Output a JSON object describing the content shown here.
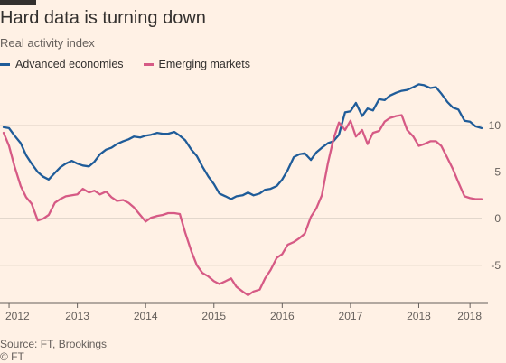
{
  "title": "Hard data is turning down",
  "subtitle": "Real activity index",
  "source": "Source: FT, Brookings",
  "copyright": "© FT",
  "chart_data": {
    "type": "line",
    "title": "Hard data is turning down",
    "ylabel": "Real activity index",
    "xlabel": "",
    "ylim": [
      -8.5,
      15.5
    ],
    "yticks": [
      -5,
      0,
      5,
      10
    ],
    "xticks": [
      {
        "label": "2012",
        "x": 2012.0
      },
      {
        "label": "2013",
        "x": 2013.0
      },
      {
        "label": "2014",
        "x": 2014.0
      },
      {
        "label": "2015",
        "x": 2015.0
      },
      {
        "label": "2016",
        "x": 2016.0
      },
      {
        "label": "2017",
        "x": 2017.0
      },
      {
        "label": "2018",
        "x": 2018.0
      },
      {
        "label": "2018",
        "x": 2018.75
      }
    ],
    "xlim": [
      2011.92,
      2018.92
    ],
    "grid": "horizontal",
    "legend_position": "top-left",
    "series": [
      {
        "name": "Advanced economies",
        "color": "#1f5c99",
        "x": [
          2011.92,
          2012.0,
          2012.08,
          2012.17,
          2012.25,
          2012.33,
          2012.42,
          2012.5,
          2012.58,
          2012.67,
          2012.75,
          2012.83,
          2012.92,
          2013.0,
          2013.08,
          2013.17,
          2013.25,
          2013.33,
          2013.42,
          2013.5,
          2013.58,
          2013.67,
          2013.75,
          2013.83,
          2013.92,
          2014.0,
          2014.08,
          2014.17,
          2014.25,
          2014.33,
          2014.42,
          2014.5,
          2014.58,
          2014.67,
          2014.75,
          2014.83,
          2014.92,
          2015.0,
          2015.08,
          2015.17,
          2015.25,
          2015.33,
          2015.42,
          2015.5,
          2015.58,
          2015.67,
          2015.75,
          2015.83,
          2015.92,
          2016.0,
          2016.08,
          2016.17,
          2016.25,
          2016.33,
          2016.42,
          2016.5,
          2016.58,
          2016.67,
          2016.75,
          2016.83,
          2016.92,
          2017.0,
          2017.08,
          2017.17,
          2017.25,
          2017.33,
          2017.42,
          2017.5,
          2017.58,
          2017.67,
          2017.75,
          2017.83,
          2017.92,
          2018.0,
          2018.08,
          2018.17,
          2018.25,
          2018.33,
          2018.42,
          2018.5,
          2018.58,
          2018.67,
          2018.75,
          2018.83,
          2018.92
        ],
        "y": [
          9.8,
          9.7,
          8.9,
          8.1,
          6.8,
          5.9,
          5.0,
          4.5,
          4.2,
          4.9,
          5.5,
          5.9,
          6.2,
          5.9,
          5.7,
          5.6,
          6.1,
          6.9,
          7.4,
          7.6,
          8.0,
          8.3,
          8.5,
          8.8,
          8.7,
          8.9,
          9.0,
          9.2,
          9.1,
          9.1,
          9.3,
          8.9,
          8.4,
          7.4,
          6.7,
          5.6,
          4.5,
          3.7,
          2.7,
          2.4,
          2.1,
          2.4,
          2.5,
          2.8,
          2.5,
          2.7,
          3.1,
          3.2,
          3.5,
          4.2,
          5.2,
          6.6,
          6.9,
          7.0,
          6.3,
          7.1,
          7.6,
          8.1,
          8.3,
          9.0,
          11.4,
          11.5,
          12.4,
          11.0,
          11.8,
          11.6,
          12.8,
          12.7,
          13.2,
          13.5,
          13.7,
          13.8,
          14.1,
          14.4,
          14.3,
          14.0,
          14.1,
          13.4,
          12.5,
          11.9,
          11.7,
          10.5,
          10.4,
          9.9,
          9.7
        ]
      },
      {
        "name": "Emerging markets",
        "color": "#d65a85",
        "x": [
          2011.92,
          2012.0,
          2012.08,
          2012.17,
          2012.25,
          2012.33,
          2012.42,
          2012.5,
          2012.58,
          2012.67,
          2012.75,
          2012.83,
          2012.92,
          2013.0,
          2013.08,
          2013.17,
          2013.25,
          2013.33,
          2013.42,
          2013.5,
          2013.58,
          2013.67,
          2013.75,
          2013.83,
          2013.92,
          2014.0,
          2014.08,
          2014.17,
          2014.25,
          2014.33,
          2014.42,
          2014.5,
          2014.58,
          2014.67,
          2014.75,
          2014.83,
          2014.92,
          2015.0,
          2015.08,
          2015.17,
          2015.25,
          2015.33,
          2015.42,
          2015.5,
          2015.58,
          2015.67,
          2015.75,
          2015.83,
          2015.92,
          2016.0,
          2016.08,
          2016.17,
          2016.25,
          2016.33,
          2016.42,
          2016.5,
          2016.58,
          2016.67,
          2016.75,
          2016.83,
          2016.92,
          2017.0,
          2017.08,
          2017.17,
          2017.25,
          2017.33,
          2017.42,
          2017.5,
          2017.58,
          2017.67,
          2017.75,
          2017.83,
          2017.92,
          2018.0,
          2018.08,
          2018.17,
          2018.25,
          2018.33,
          2018.42,
          2018.5,
          2018.58,
          2018.67,
          2018.75,
          2018.83,
          2018.92
        ],
        "y": [
          9.2,
          7.8,
          5.6,
          3.5,
          2.3,
          1.6,
          -0.2,
          0.0,
          0.4,
          1.7,
          2.1,
          2.4,
          2.5,
          2.6,
          3.2,
          2.8,
          3.0,
          2.6,
          2.9,
          2.3,
          1.9,
          2.0,
          1.7,
          1.2,
          0.4,
          -0.3,
          0.1,
          0.3,
          0.4,
          0.6,
          0.6,
          0.5,
          -1.5,
          -3.5,
          -5.0,
          -5.8,
          -6.2,
          -6.7,
          -7.0,
          -6.7,
          -6.4,
          -7.3,
          -7.8,
          -8.2,
          -7.8,
          -7.6,
          -6.4,
          -5.5,
          -4.2,
          -3.8,
          -2.8,
          -2.5,
          -2.1,
          -1.6,
          0.2,
          1.1,
          2.5,
          6.0,
          8.5,
          10.3,
          9.5,
          10.5,
          8.8,
          9.5,
          8.0,
          9.2,
          9.4,
          10.4,
          10.8,
          11.0,
          11.1,
          9.5,
          8.8,
          7.8,
          8.0,
          8.3,
          8.3,
          7.8,
          6.5,
          5.3,
          3.9,
          2.4,
          2.2,
          2.1,
          2.1
        ]
      }
    ]
  }
}
